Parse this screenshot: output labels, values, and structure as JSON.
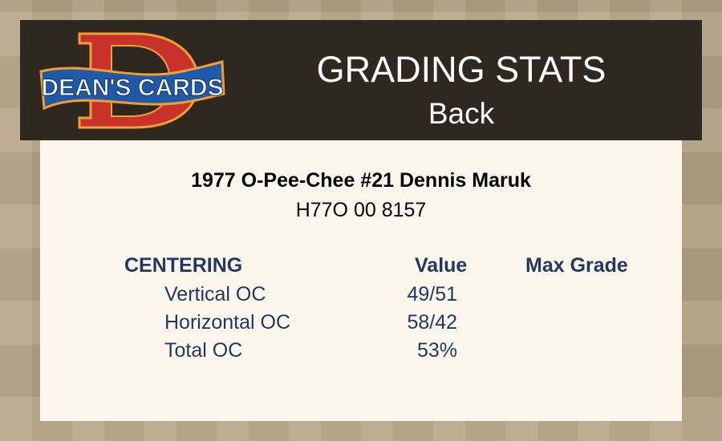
{
  "header": {
    "logo_text": "DEAN'S CARDS",
    "title": "GRADING STATS",
    "subtitle": "Back"
  },
  "card": {
    "title": "1977 O-Pee-Chee #21 Dennis Maruk",
    "cert": "H77O 00 8157"
  },
  "table": {
    "section": "CENTERING",
    "value_header": "Value",
    "max_grade_header": "Max Grade",
    "rows": [
      {
        "label": "Vertical OC",
        "value": "49/51"
      },
      {
        "label": "Horizontal OC",
        "value": "58/42"
      },
      {
        "label": "Total OC",
        "value": "53%"
      }
    ]
  }
}
